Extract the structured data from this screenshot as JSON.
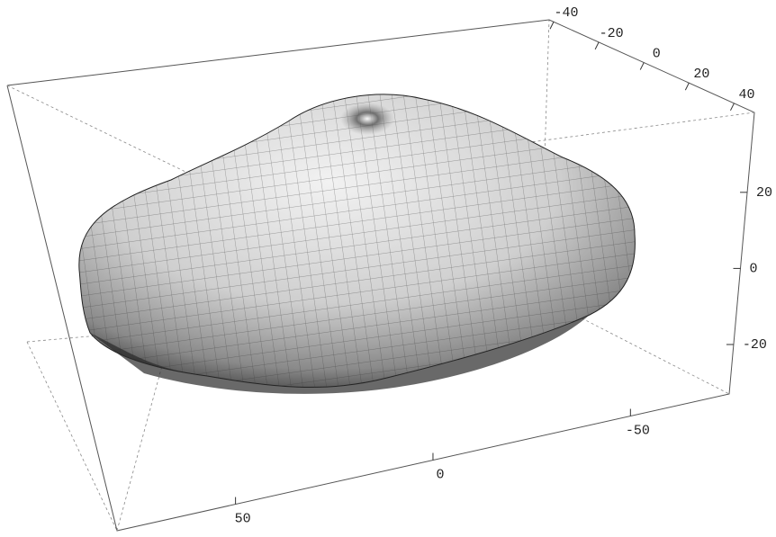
{
  "chart_data": {
    "type": "surface3d",
    "xlim": [
      80,
      -75
    ],
    "xticks": [
      50,
      0,
      -50
    ],
    "ylim": [
      -42,
      49
    ],
    "yticks": [
      -40,
      -20,
      0,
      20,
      40
    ],
    "zlim": [
      41,
      -33
    ],
    "zticks": [
      20,
      0,
      -20
    ]
  }
}
